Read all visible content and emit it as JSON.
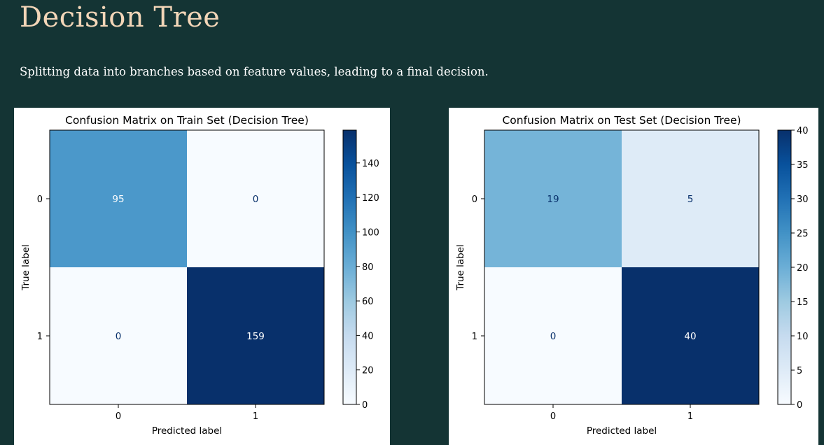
{
  "page": {
    "title": "Decision Tree",
    "subtitle": "Splitting data into branches based on feature values, leading to a final decision."
  },
  "chart_data": [
    {
      "type": "heatmap",
      "title": "Confusion Matrix on Train Set (Decision Tree)",
      "xlabel": "Predicted label",
      "ylabel": "True label",
      "x_ticks": [
        "0",
        "1"
      ],
      "y_ticks": [
        "0",
        "1"
      ],
      "matrix": [
        [
          95,
          0
        ],
        [
          0,
          159
        ]
      ],
      "colormap": "Blues",
      "colorbar": {
        "min": 0,
        "max": 159,
        "ticks": [
          0,
          20,
          40,
          60,
          80,
          100,
          120,
          140
        ]
      }
    },
    {
      "type": "heatmap",
      "title": "Confusion Matrix on Test Set (Decision Tree)",
      "xlabel": "Predicted label",
      "ylabel": "True label",
      "x_ticks": [
        "0",
        "1"
      ],
      "y_ticks": [
        "0",
        "1"
      ],
      "matrix": [
        [
          19,
          5
        ],
        [
          0,
          40
        ]
      ],
      "colormap": "Blues",
      "colorbar": {
        "min": 0,
        "max": 40,
        "ticks": [
          0,
          5,
          10,
          15,
          20,
          25,
          30,
          35,
          40
        ]
      }
    }
  ]
}
